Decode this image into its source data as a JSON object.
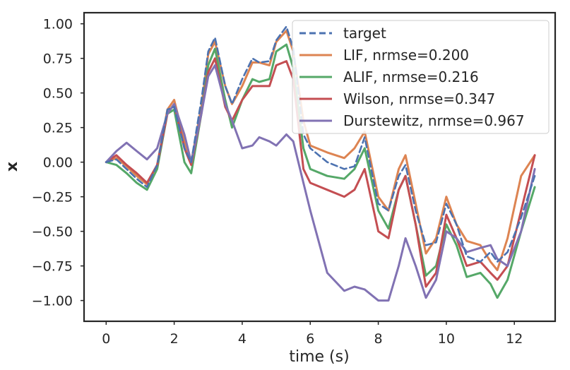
{
  "chart_data": {
    "type": "line",
    "xlabel": "time (s)",
    "ylabel": "x",
    "xlim": [
      -0.65,
      13.2
    ],
    "ylim": [
      -1.15,
      1.08
    ],
    "xticks": [
      0,
      2,
      4,
      6,
      8,
      10,
      12
    ],
    "yticks": [
      1.0,
      0.75,
      0.5,
      0.25,
      0.0,
      -0.25,
      -0.5,
      -0.75,
      -1.0
    ],
    "xtick_labels": [
      "0",
      "2",
      "4",
      "6",
      "8",
      "10",
      "12"
    ],
    "ytick_labels": [
      "1.00",
      "0.75",
      "0.50",
      "0.25",
      "0.00",
      "−0.25",
      "−0.50",
      "−0.75",
      "−1.00"
    ],
    "grid": false,
    "legend_position": "top-right",
    "x": [
      0,
      0.3,
      0.6,
      0.9,
      1.2,
      1.5,
      1.8,
      2.0,
      2.3,
      2.5,
      2.8,
      3.0,
      3.2,
      3.5,
      3.7,
      4.0,
      4.3,
      4.5,
      4.8,
      5.0,
      5.3,
      5.5,
      5.8,
      6.0,
      6.5,
      7.0,
      7.3,
      7.6,
      8.0,
      8.3,
      8.6,
      8.8,
      9.1,
      9.4,
      9.7,
      10.0,
      10.3,
      10.6,
      11.0,
      11.3,
      11.5,
      11.8,
      12.2,
      12.6
    ],
    "series": [
      {
        "name": "target",
        "color": "#4c72b0",
        "dash": true,
        "values": [
          0.0,
          0.02,
          -0.05,
          -0.12,
          -0.18,
          -0.02,
          0.38,
          0.4,
          0.1,
          0.0,
          0.45,
          0.8,
          0.9,
          0.55,
          0.42,
          0.6,
          0.75,
          0.72,
          0.73,
          0.88,
          0.98,
          0.82,
          0.2,
          0.1,
          0.0,
          -0.05,
          -0.03,
          0.18,
          -0.3,
          -0.35,
          -0.1,
          -0.02,
          -0.35,
          -0.6,
          -0.58,
          -0.3,
          -0.45,
          -0.68,
          -0.72,
          -0.65,
          -0.72,
          -0.65,
          -0.4,
          -0.1
        ]
      },
      {
        "name": "LIF, nrmse=0.200",
        "color": "#dd8452",
        "dash": false,
        "values": [
          0.0,
          0.03,
          -0.03,
          -0.1,
          -0.16,
          -0.02,
          0.38,
          0.45,
          0.15,
          0.0,
          0.4,
          0.78,
          0.87,
          0.55,
          0.42,
          0.55,
          0.72,
          0.72,
          0.7,
          0.87,
          0.95,
          0.8,
          0.3,
          0.12,
          0.07,
          0.03,
          0.1,
          0.22,
          -0.25,
          -0.35,
          -0.05,
          0.05,
          -0.3,
          -0.66,
          -0.55,
          -0.25,
          -0.45,
          -0.57,
          -0.6,
          -0.72,
          -0.78,
          -0.55,
          -0.1,
          0.05
        ]
      },
      {
        "name": "ALIF, nrmse=0.216",
        "color": "#55a868",
        "dash": false,
        "values": [
          0.0,
          -0.02,
          -0.08,
          -0.15,
          -0.2,
          -0.05,
          0.35,
          0.38,
          0.0,
          -0.08,
          0.35,
          0.7,
          0.82,
          0.45,
          0.25,
          0.45,
          0.6,
          0.58,
          0.6,
          0.8,
          0.85,
          0.68,
          0.1,
          -0.05,
          -0.1,
          -0.12,
          -0.05,
          0.1,
          -0.35,
          -0.48,
          -0.2,
          -0.1,
          -0.45,
          -0.82,
          -0.75,
          -0.45,
          -0.6,
          -0.83,
          -0.8,
          -0.88,
          -0.98,
          -0.85,
          -0.5,
          -0.18
        ]
      },
      {
        "name": "Wilson, nrmse=0.347",
        "color": "#c44e52",
        "dash": false,
        "values": [
          0.0,
          0.05,
          -0.02,
          -0.08,
          -0.15,
          -0.02,
          0.35,
          0.42,
          0.1,
          -0.02,
          0.35,
          0.65,
          0.75,
          0.4,
          0.3,
          0.45,
          0.55,
          0.55,
          0.55,
          0.7,
          0.73,
          0.6,
          -0.05,
          -0.15,
          -0.2,
          -0.25,
          -0.2,
          -0.05,
          -0.5,
          -0.55,
          -0.2,
          -0.1,
          -0.45,
          -0.9,
          -0.8,
          -0.38,
          -0.55,
          -0.75,
          -0.72,
          -0.8,
          -0.85,
          -0.75,
          -0.35,
          0.05
        ]
      },
      {
        "name": "Durstewitz, nrmse=0.967",
        "color": "#8172b3",
        "dash": false,
        "values": [
          0.0,
          0.08,
          0.14,
          0.08,
          0.02,
          0.1,
          0.35,
          0.42,
          0.2,
          0.0,
          0.35,
          0.62,
          0.7,
          0.42,
          0.3,
          0.1,
          0.12,
          0.18,
          0.15,
          0.12,
          0.2,
          0.15,
          -0.15,
          -0.35,
          -0.8,
          -0.93,
          -0.9,
          -0.92,
          -1.0,
          -1.0,
          -0.75,
          -0.55,
          -0.75,
          -0.98,
          -0.85,
          -0.5,
          -0.55,
          -0.65,
          -0.62,
          -0.6,
          -0.7,
          -0.75,
          -0.5,
          -0.05
        ]
      }
    ]
  }
}
